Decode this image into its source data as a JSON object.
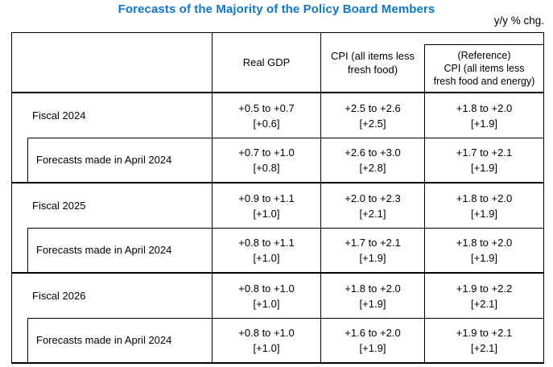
{
  "title": "Forecasts of the Majority of the Policy Board Members",
  "unit_label": "y/y % chg.",
  "colors": {
    "title_blue": "#0e76cf",
    "border": "#000000",
    "background": "#ffffff"
  },
  "table": {
    "header": {
      "real_gdp": "Real GDP",
      "cpi_lines": [
        "CPI (all items less",
        "fresh food)"
      ],
      "reference_lines": [
        "(Reference)",
        "CPI (all items less",
        "fresh food and energy)"
      ]
    },
    "groups": [
      {
        "main": {
          "label": "Fiscal 2024",
          "gdp_range": "+0.5 to +0.7",
          "gdp_median": "[+0.6]",
          "cpi_range": "+2.5 to +2.6",
          "cpi_median": "[+2.5]",
          "ref_range": "+1.8 to +2.0",
          "ref_median": "[+1.9]"
        },
        "revision": {
          "label": "Forecasts made in April 2024",
          "gdp_range": "+0.7 to +1.0",
          "gdp_median": "[+0.8]",
          "cpi_range": "+2.6 to +3.0",
          "cpi_median": "[+2.8]",
          "ref_range": "+1.7 to +2.1",
          "ref_median": "[+1.9]"
        }
      },
      {
        "main": {
          "label": "Fiscal 2025",
          "gdp_range": "+0.9 to +1.1",
          "gdp_median": "[+1.0]",
          "cpi_range": "+2.0 to +2.3",
          "cpi_median": "[+2.1]",
          "ref_range": "+1.8 to +2.0",
          "ref_median": "[+1.9]"
        },
        "revision": {
          "label": "Forecasts made in April 2024",
          "gdp_range": "+0.8 to +1.1",
          "gdp_median": "[+1.0]",
          "cpi_range": "+1.7 to +2.1",
          "cpi_median": "[+1.9]",
          "ref_range": "+1.8 to +2.0",
          "ref_median": "[+1.9]"
        }
      },
      {
        "main": {
          "label": "Fiscal 2026",
          "gdp_range": "+0.8 to +1.0",
          "gdp_median": "[+1.0]",
          "cpi_range": "+1.8 to +2.0",
          "cpi_median": "[+1.9]",
          "ref_range": "+1.9 to +2.2",
          "ref_median": "[+2.1]"
        },
        "revision": {
          "label": "Forecasts made in April 2024",
          "gdp_range": "+0.8 to +1.0",
          "gdp_median": "[+1.0]",
          "cpi_range": "+1.6 to +2.0",
          "cpi_median": "[+1.9]",
          "ref_range": "+1.9 to +2.1",
          "ref_median": "[+2.1]"
        }
      }
    ]
  }
}
